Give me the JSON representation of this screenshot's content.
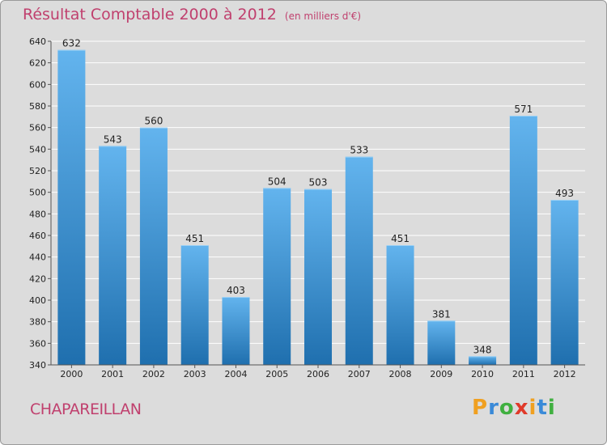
{
  "chart_data": {
    "type": "bar",
    "title": "Résultat Comptable 2000 à 2012",
    "subtitle": "(en milliers d'€)",
    "categories": [
      "2000",
      "2001",
      "2002",
      "2003",
      "2004",
      "2005",
      "2006",
      "2007",
      "2008",
      "2009",
      "2010",
      "2011",
      "2012"
    ],
    "values": [
      632,
      543,
      560,
      451,
      403,
      504,
      503,
      533,
      451,
      381,
      348,
      571,
      493
    ],
    "ylim": [
      340,
      640
    ],
    "yticks": [
      340,
      360,
      380,
      400,
      420,
      440,
      460,
      480,
      500,
      520,
      540,
      560,
      580,
      600,
      620,
      640
    ],
    "grid": true,
    "xlabel": "",
    "ylabel": ""
  },
  "place": "CHAPAREILLAN",
  "logo": {
    "text": "Proxiti",
    "letters": [
      "P",
      "r",
      "o",
      "x",
      "i",
      "t",
      "i"
    ],
    "colors": [
      "#f0a020",
      "#3a8ad8",
      "#40b040",
      "#e03a2a",
      "#f0a020",
      "#3a8ad8",
      "#40b040"
    ]
  },
  "colors": {
    "title": "#c0406e",
    "bar_top": "#63b4ee",
    "bar_bottom": "#1f6fae"
  }
}
